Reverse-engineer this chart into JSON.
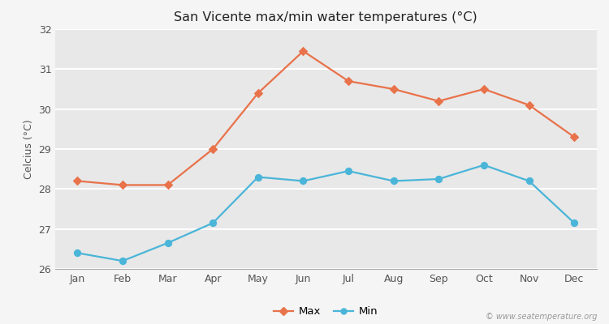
{
  "months": [
    "Jan",
    "Feb",
    "Mar",
    "Apr",
    "May",
    "Jun",
    "Jul",
    "Aug",
    "Sep",
    "Oct",
    "Nov",
    "Dec"
  ],
  "max_temps": [
    28.2,
    28.1,
    28.1,
    29.0,
    30.4,
    31.45,
    30.7,
    30.5,
    30.2,
    30.5,
    30.1,
    29.3
  ],
  "min_temps": [
    26.4,
    26.2,
    26.65,
    27.15,
    28.3,
    28.2,
    28.45,
    28.2,
    28.25,
    28.6,
    28.2,
    27.15
  ],
  "title": "San Vicente max/min water temperatures (°C)",
  "ylabel": "Celcius (°C)",
  "ylim": [
    26.0,
    32.0
  ],
  "yticks": [
    26,
    27,
    28,
    29,
    30,
    31,
    32
  ],
  "max_color": "#e8724a",
  "min_color": "#4ab5d8",
  "fig_bg_color": "#f5f5f5",
  "plot_bg_color": "#e8e8e8",
  "grid_color": "#ffffff",
  "tick_color": "#555555",
  "watermark": "© www.seatemperature.org",
  "legend_max": "Max",
  "legend_min": "Min"
}
